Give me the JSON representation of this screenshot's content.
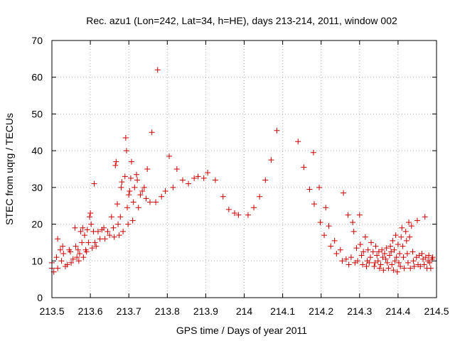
{
  "chart_data": {
    "type": "scatter",
    "title": "Rec. azu1 (Lon=242, Lat=34, h=HE), days 213-214, 2011, window 002",
    "xlabel": "GPS time / Days of year 2011",
    "ylabel": "STEC from uqrg / TECUs",
    "xlim": [
      213.5,
      214.5
    ],
    "ylim": [
      0,
      70
    ],
    "xticks": [
      213.5,
      213.6,
      213.7,
      213.8,
      213.9,
      214,
      214.1,
      214.2,
      214.3,
      214.4,
      214.5
    ],
    "xtick_labels": [
      "213.5",
      "213.6",
      "213.7",
      "213.8",
      "213.9",
      "214",
      "214.1",
      "214.2",
      "214.3",
      "214.4",
      "214.5"
    ],
    "yticks": [
      0,
      10,
      20,
      30,
      40,
      50,
      60,
      70
    ],
    "ytick_labels": [
      "0",
      "10",
      "20",
      "30",
      "40",
      "50",
      "60",
      "70"
    ],
    "grid": true,
    "marker": "+",
    "color": "#cc0000",
    "series": [
      {
        "points": [
          [
            213.5,
            8.0
          ],
          [
            213.5,
            9.5
          ],
          [
            213.505,
            7.0
          ],
          [
            213.512,
            11.0
          ],
          [
            213.515,
            16.0
          ],
          [
            213.515,
            8.0
          ],
          [
            213.522,
            13.0
          ],
          [
            213.525,
            10.0
          ],
          [
            213.528,
            14.0
          ],
          [
            213.53,
            12.0
          ],
          [
            213.535,
            8.5
          ],
          [
            213.54,
            9.0
          ],
          [
            213.545,
            13.0
          ],
          [
            213.548,
            12.5
          ],
          [
            213.55,
            9.5
          ],
          [
            213.555,
            10.5
          ],
          [
            213.56,
            19.0
          ],
          [
            213.562,
            14.0
          ],
          [
            213.565,
            11.0
          ],
          [
            213.568,
            13.0
          ],
          [
            213.57,
            10.0
          ],
          [
            213.572,
            12.0
          ],
          [
            213.575,
            18.0
          ],
          [
            213.578,
            15.0
          ],
          [
            213.58,
            19.0
          ],
          [
            213.582,
            11.0
          ],
          [
            213.585,
            17.0
          ],
          [
            213.588,
            13.0
          ],
          [
            213.59,
            12.5
          ],
          [
            213.592,
            18.5
          ],
          [
            213.595,
            15.0
          ],
          [
            213.598,
            22.0
          ],
          [
            213.6,
            23.0
          ],
          [
            213.602,
            20.0
          ],
          [
            213.605,
            13.5
          ],
          [
            213.608,
            18.0
          ],
          [
            213.61,
            31.0
          ],
          [
            213.612,
            15.0
          ],
          [
            213.615,
            14.0
          ],
          [
            213.62,
            18.0
          ],
          [
            213.625,
            16.0
          ],
          [
            213.63,
            18.5
          ],
          [
            213.635,
            19.0
          ],
          [
            213.638,
            16.0
          ],
          [
            213.645,
            18.0
          ],
          [
            213.65,
            17.0
          ],
          [
            213.655,
            22.0
          ],
          [
            213.66,
            19.0
          ],
          [
            213.662,
            16.5
          ],
          [
            213.665,
            36.0
          ],
          [
            213.667,
            37.0
          ],
          [
            213.67,
            25.5
          ],
          [
            213.672,
            20.0
          ],
          [
            213.675,
            17.0
          ],
          [
            213.678,
            22.0
          ],
          [
            213.68,
            30.0
          ],
          [
            213.682,
            31.5
          ],
          [
            213.685,
            18.0
          ],
          [
            213.69,
            33.0
          ],
          [
            213.692,
            43.5
          ],
          [
            213.694,
            40.0
          ],
          [
            213.696,
            24.5
          ],
          [
            213.698,
            20.0
          ],
          [
            213.7,
            28.0
          ],
          [
            213.702,
            29.0
          ],
          [
            213.705,
            32.5
          ],
          [
            213.707,
            37.0
          ],
          [
            213.71,
            21.0
          ],
          [
            213.712,
            26.0
          ],
          [
            213.715,
            30.0
          ],
          [
            213.72,
            33.5
          ],
          [
            213.722,
            32.0
          ],
          [
            213.725,
            24.5
          ],
          [
            213.73,
            28.0
          ],
          [
            213.735,
            29.0
          ],
          [
            213.74,
            30.0
          ],
          [
            213.745,
            27.0
          ],
          [
            213.748,
            35.0
          ],
          [
            213.755,
            26.0
          ],
          [
            213.76,
            45.0
          ],
          [
            213.77,
            26.0
          ],
          [
            213.775,
            62.0
          ],
          [
            213.785,
            27.5
          ],
          [
            213.795,
            29.0
          ],
          [
            213.805,
            38.5
          ],
          [
            213.815,
            30.0
          ],
          [
            213.825,
            35.0
          ],
          [
            213.84,
            32.0
          ],
          [
            213.855,
            31.0
          ],
          [
            213.87,
            32.5
          ],
          [
            213.88,
            33.0
          ],
          [
            213.895,
            32.5
          ],
          [
            213.905,
            34.0
          ],
          [
            213.925,
            32.0
          ],
          [
            213.945,
            27.5
          ],
          [
            213.96,
            24.0
          ],
          [
            213.975,
            23.0
          ],
          [
            213.985,
            22.5
          ],
          [
            214.01,
            22.5
          ],
          [
            214.025,
            24.5
          ],
          [
            214.04,
            27.5
          ],
          [
            214.055,
            32.0
          ],
          [
            214.07,
            37.5
          ],
          [
            214.085,
            45.5
          ],
          [
            214.14,
            42.5
          ],
          [
            214.155,
            35.5
          ],
          [
            214.17,
            29.5
          ],
          [
            214.18,
            39.5
          ],
          [
            214.182,
            25.5
          ],
          [
            214.195,
            30.0
          ],
          [
            214.198,
            20.5
          ],
          [
            214.208,
            17.0
          ],
          [
            214.212,
            24.5
          ],
          [
            214.22,
            19.5
          ],
          [
            214.225,
            14.0
          ],
          [
            214.235,
            15.5
          ],
          [
            214.24,
            12.0
          ],
          [
            214.25,
            13.0
          ],
          [
            214.255,
            10.0
          ],
          [
            214.258,
            28.5
          ],
          [
            214.265,
            10.5
          ],
          [
            214.27,
            22.5
          ],
          [
            214.272,
            9.0
          ],
          [
            214.278,
            11.0
          ],
          [
            214.282,
            20.5
          ],
          [
            214.285,
            18.0
          ],
          [
            214.288,
            9.5
          ],
          [
            214.292,
            13.5
          ],
          [
            214.295,
            10.0
          ],
          [
            214.3,
            22.5
          ],
          [
            214.302,
            14.5
          ],
          [
            214.305,
            11.5
          ],
          [
            214.308,
            9.0
          ],
          [
            214.31,
            12.5
          ],
          [
            214.315,
            16.5
          ],
          [
            214.318,
            8.5
          ],
          [
            214.32,
            10.0
          ],
          [
            214.322,
            13.0
          ],
          [
            214.325,
            9.5
          ],
          [
            214.328,
            11.0
          ],
          [
            214.33,
            15.0
          ],
          [
            214.335,
            12.5
          ],
          [
            214.338,
            8.5
          ],
          [
            214.34,
            9.5
          ],
          [
            214.342,
            14.0
          ],
          [
            214.345,
            11.5
          ],
          [
            214.348,
            10.0
          ],
          [
            214.35,
            12.5
          ],
          [
            214.352,
            8.0
          ],
          [
            214.355,
            9.0
          ],
          [
            214.358,
            13.0
          ],
          [
            214.36,
            11.0
          ],
          [
            214.362,
            7.5
          ],
          [
            214.365,
            12.0
          ],
          [
            214.368,
            10.5
          ],
          [
            214.37,
            13.5
          ],
          [
            214.372,
            9.5
          ],
          [
            214.375,
            8.0
          ],
          [
            214.378,
            11.5
          ],
          [
            214.38,
            14.0
          ],
          [
            214.382,
            12.5
          ],
          [
            214.384,
            9.0
          ],
          [
            214.386,
            15.5
          ],
          [
            214.388,
            7.5
          ],
          [
            214.39,
            13.0
          ],
          [
            214.392,
            10.0
          ],
          [
            214.394,
            17.0
          ],
          [
            214.396,
            11.0
          ],
          [
            214.398,
            7.0
          ],
          [
            214.4,
            14.5
          ],
          [
            214.402,
            9.5
          ],
          [
            214.404,
            12.0
          ],
          [
            214.406,
            8.5
          ],
          [
            214.408,
            16.5
          ],
          [
            214.41,
            19.0
          ],
          [
            214.412,
            14.0
          ],
          [
            214.414,
            11.0
          ],
          [
            214.416,
            8.0
          ],
          [
            214.42,
            18.0
          ],
          [
            214.422,
            15.5
          ],
          [
            214.424,
            12.0
          ],
          [
            214.426,
            9.5
          ],
          [
            214.428,
            20.5
          ],
          [
            214.43,
            16.5
          ],
          [
            214.432,
            8.0
          ],
          [
            214.435,
            19.5
          ],
          [
            214.438,
            12.5
          ],
          [
            214.44,
            10.0
          ],
          [
            214.442,
            8.5
          ],
          [
            214.448,
            11.0
          ],
          [
            214.45,
            21.0
          ],
          [
            214.452,
            9.0
          ],
          [
            214.455,
            11.5
          ],
          [
            214.458,
            8.5
          ],
          [
            214.462,
            12.0
          ],
          [
            214.465,
            10.5
          ],
          [
            214.468,
            9.0
          ],
          [
            214.47,
            22.0
          ],
          [
            214.472,
            11.0
          ],
          [
            214.475,
            8.0
          ],
          [
            214.478,
            10.0
          ],
          [
            214.48,
            11.5
          ],
          [
            214.482,
            9.5
          ],
          [
            214.485,
            8.0
          ],
          [
            214.488,
            10.5
          ],
          [
            214.49,
            11.0
          ]
        ]
      }
    ]
  }
}
